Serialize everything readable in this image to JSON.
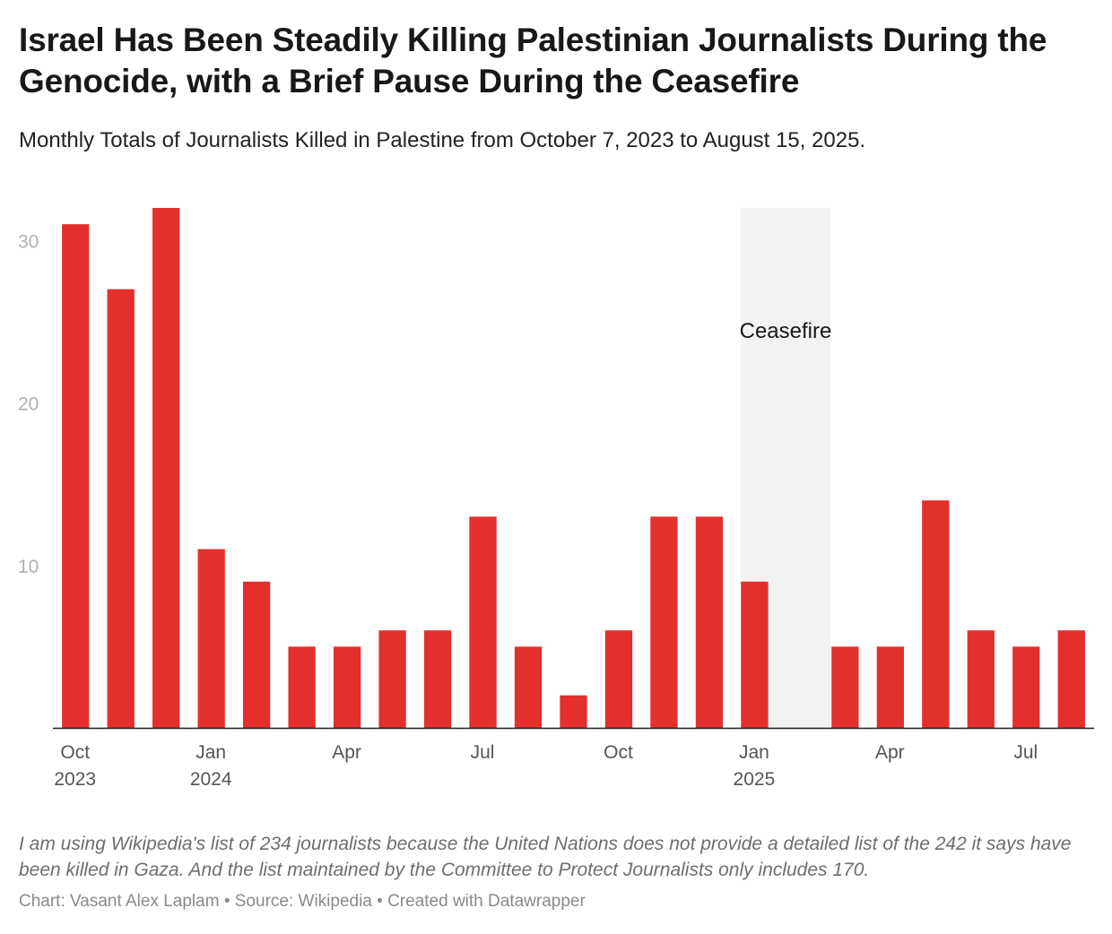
{
  "title": "Israel Has Been Steadily Killing Palestinian Journalists During the Genocide, with a Brief Pause During the Ceasefire",
  "subtitle": "Monthly Totals of Journalists Killed in Palestine from October 7, 2023 to August 15, 2025.",
  "notes": "I am using Wikipedia's list of 234 journalists because the United Nations does not provide a detailed list of the 242 it says have been killed in Gaza. And the list maintained by the Committee to Protect Journalists only includes 170.",
  "byline": "Chart: Vasant Alex Laplam • Source: Wikipedia • Created with Datawrapper",
  "colors": {
    "bar": "#e3302d",
    "highlight": "#f2f2f2",
    "axis": "#1a1a1a"
  },
  "chart_data": {
    "type": "bar",
    "title": "Israel Has Been Steadily Killing Palestinian Journalists During the Genocide, with a Brief Pause During the Ceasefire",
    "subtitle": "Monthly Totals of Journalists Killed in Palestine from October 7, 2023 to August 15, 2025.",
    "xlabel": "",
    "ylabel": "",
    "categories": [
      "2023-10",
      "2023-11",
      "2023-12",
      "2024-01",
      "2024-02",
      "2024-03",
      "2024-04",
      "2024-05",
      "2024-06",
      "2024-07",
      "2024-08",
      "2024-09",
      "2024-10",
      "2024-11",
      "2024-12",
      "2025-01",
      "2025-02",
      "2025-03",
      "2025-04",
      "2025-05",
      "2025-06",
      "2025-07",
      "2025-08"
    ],
    "values": [
      31,
      27,
      32,
      11,
      9,
      5,
      5,
      6,
      6,
      13,
      5,
      2,
      6,
      13,
      13,
      9,
      0,
      5,
      5,
      14,
      6,
      5,
      6
    ],
    "ylim": [
      0,
      32
    ],
    "y_ticks": [
      10,
      20,
      30
    ],
    "x_tick_labels": [
      {
        "category": "2023-10",
        "lines": [
          "Oct",
          "2023"
        ]
      },
      {
        "category": "2024-01",
        "lines": [
          "Jan",
          "2024"
        ]
      },
      {
        "category": "2024-04",
        "lines": [
          "Apr"
        ]
      },
      {
        "category": "2024-07",
        "lines": [
          "Jul"
        ]
      },
      {
        "category": "2024-10",
        "lines": [
          "Oct"
        ]
      },
      {
        "category": "2025-01",
        "lines": [
          "Jan",
          "2025"
        ]
      },
      {
        "category": "2025-04",
        "lines": [
          "Apr"
        ]
      },
      {
        "category": "2025-07",
        "lines": [
          "Jul"
        ]
      }
    ],
    "highlight_range": {
      "label": "Ceasefire",
      "from": "2025-01",
      "to": "2025-02"
    },
    "grid": false,
    "legend": "none"
  }
}
